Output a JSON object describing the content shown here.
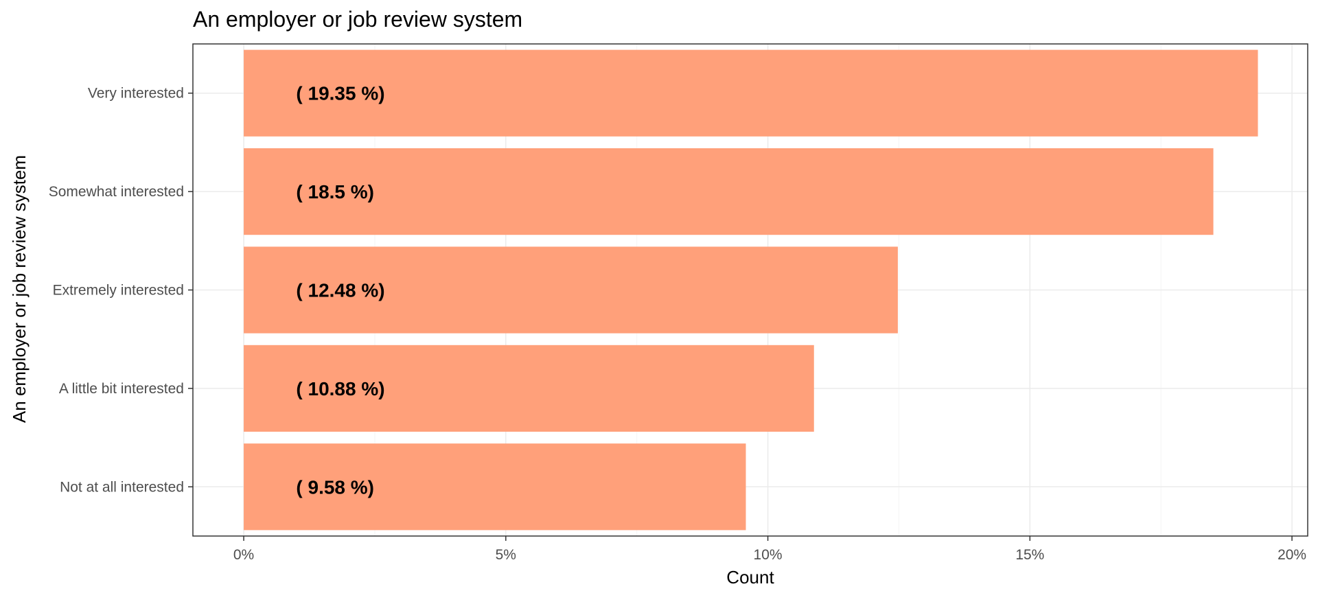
{
  "chart_data": {
    "type": "bar",
    "orientation": "horizontal",
    "title": "An employer or job review system",
    "xlabel": "Count",
    "ylabel": "An employer or job review system",
    "categories": [
      "Very interested",
      "Somewhat interested",
      "Extremely interested",
      "A little bit interested",
      "Not at all interested"
    ],
    "values": [
      19.35,
      18.5,
      12.48,
      10.88,
      9.58
    ],
    "data_labels": [
      "( 19.35 %)",
      "( 18.5 %)",
      "( 12.48 %)",
      "( 10.88 %)",
      "( 9.58 %)"
    ],
    "xlim": [
      -0.97,
      20.3
    ],
    "x_ticks": [
      0,
      5,
      10,
      15,
      20
    ],
    "x_tick_labels": [
      "0%",
      "5%",
      "10%",
      "15%",
      "20%"
    ],
    "label_position_value": 1,
    "grid": true,
    "legend": "none",
    "colors": {
      "bar": "#FFA07A",
      "grid_major": "#ebebeb",
      "grid_minor": "#f5f5f5",
      "panel_border": "#333333",
      "tick_text": "#4d4d4d",
      "text": "#000000"
    }
  }
}
